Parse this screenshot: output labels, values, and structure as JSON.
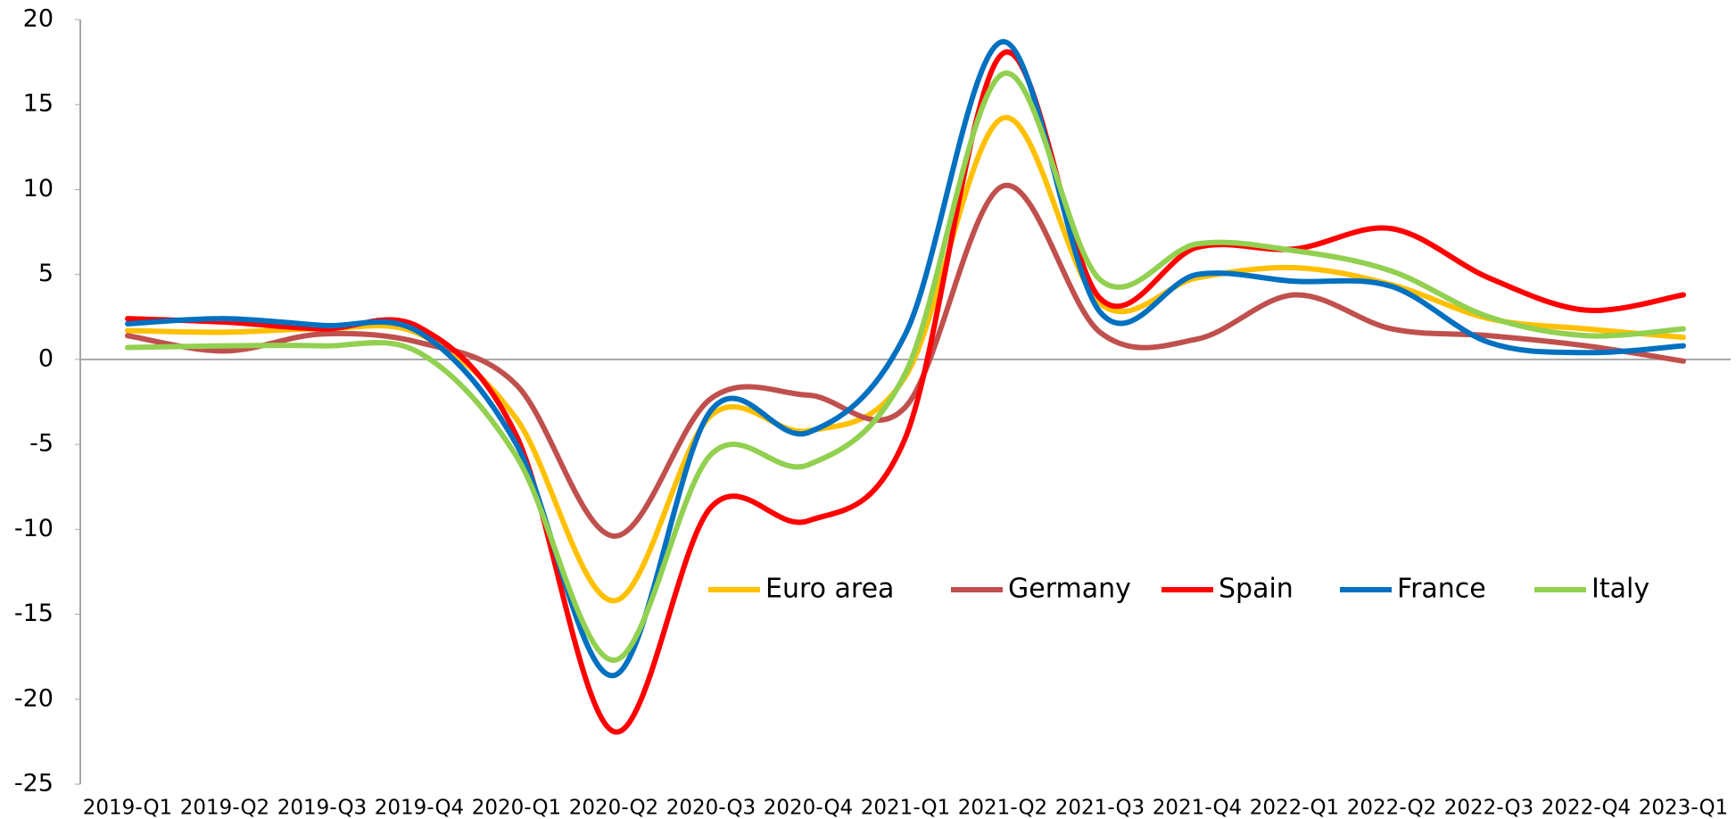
{
  "chart_data": {
    "type": "line",
    "categories": [
      "2019-Q1",
      "2019-Q2",
      "2019-Q3",
      "2019-Q4",
      "2020-Q1",
      "2020-Q2",
      "2020-Q3",
      "2020-Q4",
      "2021-Q1",
      "2021-Q2",
      "2021-Q3",
      "2021-Q4",
      "2022-Q1",
      "2022-Q2",
      "2022-Q3",
      "2022-Q4",
      "2023-Q1"
    ],
    "series": [
      {
        "name": "Euro area",
        "color": "#FFC000",
        "values": [
          1.7,
          1.6,
          1.8,
          1.5,
          -3.5,
          -14.2,
          -3.3,
          -4.2,
          -1.0,
          14.2,
          3.3,
          4.8,
          5.4,
          4.4,
          2.4,
          1.8,
          1.3
        ]
      },
      {
        "name": "Germany",
        "color": "#C0504D",
        "values": [
          1.4,
          0.5,
          1.5,
          1.0,
          -1.5,
          -10.4,
          -2.3,
          -2.1,
          -2.8,
          10.2,
          1.6,
          1.2,
          3.8,
          1.8,
          1.4,
          0.8,
          -0.1
        ]
      },
      {
        "name": "Spain",
        "color": "#FF0000",
        "values": [
          2.4,
          2.2,
          1.8,
          1.9,
          -4.5,
          -21.9,
          -8.7,
          -9.5,
          -4.6,
          18.0,
          3.6,
          6.6,
          6.5,
          7.7,
          4.8,
          2.9,
          3.8
        ]
      },
      {
        "name": "France",
        "color": "#0070C0",
        "values": [
          2.1,
          2.4,
          2.0,
          1.6,
          -5.0,
          -18.6,
          -3.0,
          -4.3,
          1.5,
          18.7,
          2.8,
          5.0,
          4.6,
          4.3,
          1.0,
          0.4,
          0.8
        ]
      },
      {
        "name": "Italy",
        "color": "#92D050",
        "values": [
          0.7,
          0.8,
          0.8,
          0.4,
          -5.7,
          -17.7,
          -5.6,
          -6.2,
          -0.8,
          16.8,
          4.7,
          6.8,
          6.4,
          5.2,
          2.5,
          1.4,
          1.8
        ]
      }
    ],
    "ylim": [
      -25,
      20
    ],
    "yticks": [
      20,
      15,
      10,
      5,
      0,
      -5,
      -10,
      -15,
      -20,
      -25
    ],
    "grid": false,
    "smooth": true,
    "legend": "right"
  }
}
